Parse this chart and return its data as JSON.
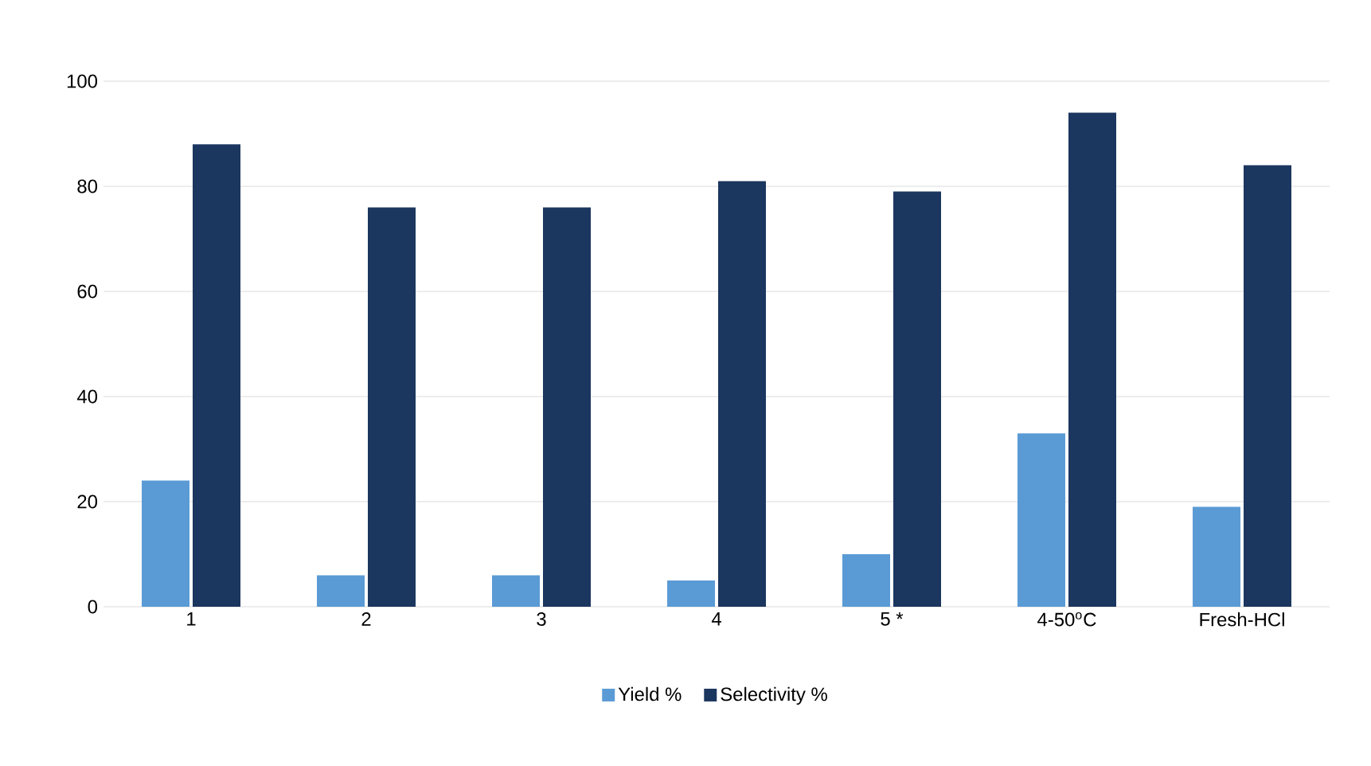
{
  "chart_data": {
    "type": "bar",
    "categories": [
      "1",
      "2",
      "3",
      "4",
      "5 *",
      "4-50$^{o}$C",
      "Fresh-HCl"
    ],
    "series": [
      {
        "name": "Yield %",
        "color": "#5b9bd5",
        "values": [
          24,
          6,
          6,
          5,
          10,
          33,
          19
        ]
      },
      {
        "name": "Selectivity %",
        "color": "#1b365f",
        "values": [
          88,
          76,
          76,
          81,
          79,
          94,
          84
        ]
      }
    ],
    "ylim": [
      0,
      100
    ],
    "yticks": [
      0,
      20,
      40,
      60,
      80,
      100
    ],
    "grid": "y",
    "legend": "bottom"
  }
}
